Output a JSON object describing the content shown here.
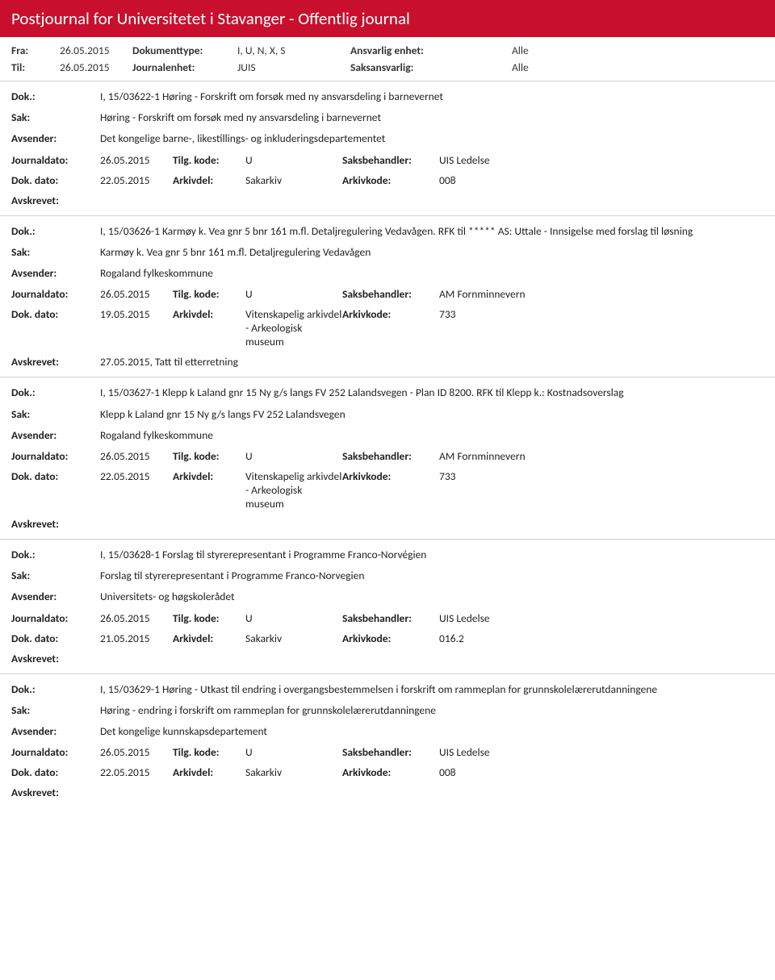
{
  "header": {
    "title": "Postjournal for Universitetet i Stavanger - Offentlig journal"
  },
  "meta": {
    "fra_lbl": "Fra:",
    "fra": "26.05.2015",
    "til_lbl": "Til:",
    "til": "26.05.2015",
    "dokumenttype_lbl": "Dokumenttype:",
    "dokumenttype": "I, U, N, X, S",
    "journalenhet_lbl": "Journalenhet:",
    "journalenhet": "JUIS",
    "ansvarlig_enhet_lbl": "Ansvarlig enhet:",
    "ansvarlig_enhet": "Alle",
    "saksansvarlig_lbl": "Saksansvarlig:",
    "saksansvarlig": "Alle"
  },
  "labels": {
    "dok": "Dok.:",
    "sak": "Sak:",
    "avsender": "Avsender:",
    "journaldato": "Journaldato:",
    "tilgkode": "Tilg. kode:",
    "saksbehandler": "Saksbehandler:",
    "dokdato": "Dok. dato:",
    "arkivdel": "Arkivdel:",
    "arkivkode": "Arkivkode:",
    "avskrevet": "Avskrevet:"
  },
  "entries": [
    {
      "dok": "I, 15/03622-1 Høring - Forskrift om forsøk med ny ansvarsdeling i barnevernet",
      "sak": "Høring - Forskrift om forsøk med ny ansvarsdeling i barnevernet",
      "avsender": "Det kongelige barne-, likestillings- og inkluderingsdepartementet",
      "journaldato": "26.05.2015",
      "tilgkode": "U",
      "saksbehandler": "UIS Ledelse",
      "dokdato": "22.05.2015",
      "arkivdel": "Sakarkiv",
      "arkivkode": "008",
      "avskrevet": ""
    },
    {
      "dok": "I, 15/03626-1 Karmøy k. Vea gnr 5 bnr 161 m.fl. Detaljregulering Vedavågen. RFK til ***** AS: Uttale - Innsigelse med forslag til løsning",
      "sak": "Karmøy k. Vea gnr 5 bnr 161 m.fl. Detaljregulering Vedavågen",
      "avsender": "Rogaland fylkeskommune",
      "journaldato": "26.05.2015",
      "tilgkode": "U",
      "saksbehandler": "AM Fornminnevern",
      "dokdato": "19.05.2015",
      "arkivdel": "Vitenskapelig arkivdel - Arkeologisk museum",
      "arkivkode": "733",
      "avskrevet": "27.05.2015, Tatt til etterretning"
    },
    {
      "dok": "I, 15/03627-1 Klepp k Laland gnr 15 Ny g/s langs FV 252 Lalandsvegen - Plan ID 8200. RFK til Klepp k.: Kostnadsoverslag",
      "sak": "Klepp k Laland gnr 15 Ny g/s langs FV 252 Lalandsvegen",
      "avsender": "Rogaland fylkeskommune",
      "journaldato": "26.05.2015",
      "tilgkode": "U",
      "saksbehandler": "AM Fornminnevern",
      "dokdato": "22.05.2015",
      "arkivdel": "Vitenskapelig arkivdel - Arkeologisk museum",
      "arkivkode": "733",
      "avskrevet": ""
    },
    {
      "dok": "I, 15/03628-1 Forslag til styrerepresentant i Programme Franco-Norvégien",
      "sak": "Forslag til styrerepresentant i Programme Franco-Norvegien",
      "avsender": "Universitets- og høgskolerådet",
      "journaldato": "26.05.2015",
      "tilgkode": "U",
      "saksbehandler": "UIS Ledelse",
      "dokdato": "21.05.2015",
      "arkivdel": "Sakarkiv",
      "arkivkode": "016.2",
      "avskrevet": ""
    },
    {
      "dok": "I, 15/03629-1 Høring - Utkast til endring i overgangsbestemmelsen i forskrift om rammeplan for grunnskolelærerutdanningene",
      "sak": "Høring - endring i forskrift om rammeplan for grunnskolelærerutdanningene",
      "avsender": "Det kongelige kunnskapsdepartement",
      "journaldato": "26.05.2015",
      "tilgkode": "U",
      "saksbehandler": "UIS Ledelse",
      "dokdato": "22.05.2015",
      "arkivdel": "Sakarkiv",
      "arkivkode": "008",
      "avskrevet": ""
    }
  ],
  "colors": {
    "header_bg": "#c8102e",
    "header_fg": "#ffffff",
    "border": "#d0d0d0",
    "text": "#222222"
  }
}
